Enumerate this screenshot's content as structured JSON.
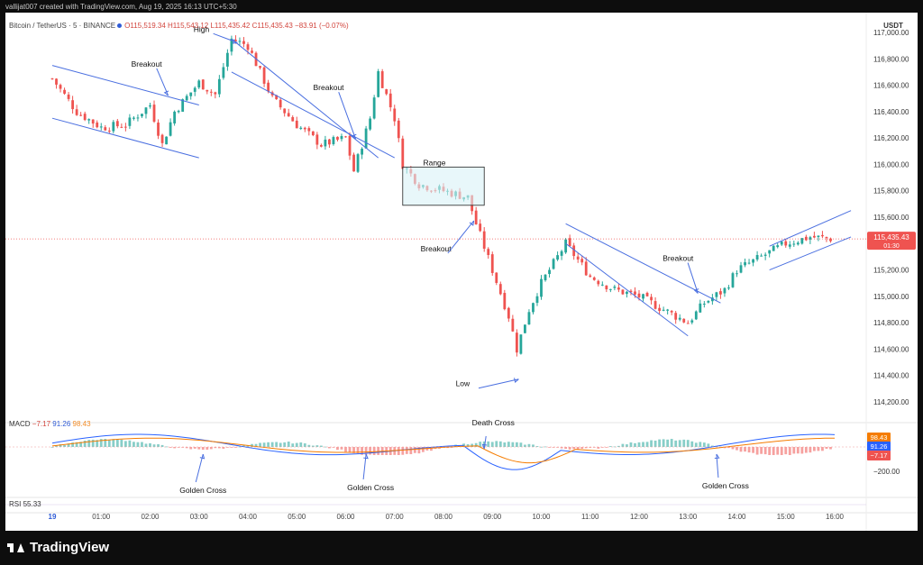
{
  "header": {
    "creator_line": "vallijat007 created with TradingView.com, Aug 19, 2025 16:13 UTC+5:30",
    "symbol": "Bitcoin / TetherUS · 5 · BINANCE",
    "ohlc": "O115,519.34  H115,543.12  L115,435.42  C115,435.43  −83.91 (−0.07%)"
  },
  "brand": {
    "name": "TradingView"
  },
  "colors": {
    "up": "#26a69a",
    "down": "#ef5350",
    "trend": "#4a6fe0",
    "range_fill": "#d8f1f7",
    "macd": "#2962ff",
    "signal": "#f57c00"
  },
  "chart_data": [
    {
      "type": "candlestick",
      "instrument": "Bitcoin / TetherUS",
      "interval": "5",
      "exchange": "BINANCE",
      "y_unit": "USDT",
      "ylim": [
        114200,
        117000
      ],
      "yticks": [
        "117,000.00",
        "116,800.00",
        "116,600.00",
        "116,400.00",
        "116,200.00",
        "116,000.00",
        "115,800.00",
        "115,600.00",
        "115,400.00",
        "115,200.00",
        "115,000.00",
        "114,800.00",
        "114,600.00",
        "114,400.00",
        "114,200.00"
      ],
      "xticks": [
        "19",
        "01:00",
        "02:00",
        "03:00",
        "04:00",
        "05:00",
        "06:00",
        "07:00",
        "08:00",
        "09:00",
        "10:00",
        "11:00",
        "12:00",
        "13:00",
        "14:00",
        "15:00",
        "16:00"
      ],
      "last_price": "115,435.43",
      "countdown": "01:30",
      "approx_close_path": [
        [
          "00:00",
          116650
        ],
        [
          "00:30",
          116400
        ],
        [
          "01:00",
          116280
        ],
        [
          "01:30",
          116300
        ],
        [
          "02:00",
          116450
        ],
        [
          "02:15",
          116150
        ],
        [
          "02:30",
          116400
        ],
        [
          "03:00",
          116620
        ],
        [
          "03:20",
          116530
        ],
        [
          "03:40",
          116950
        ],
        [
          "04:00",
          116900
        ],
        [
          "04:30",
          116500
        ],
        [
          "05:00",
          116300
        ],
        [
          "05:30",
          116150
        ],
        [
          "06:00",
          116200
        ],
        [
          "06:10",
          115950
        ],
        [
          "06:30",
          116350
        ],
        [
          "06:40",
          116700
        ],
        [
          "07:00",
          116350
        ],
        [
          "07:10",
          116000
        ],
        [
          "07:30",
          115850
        ],
        [
          "08:00",
          115800
        ],
        [
          "08:30",
          115750
        ],
        [
          "08:40",
          115550
        ],
        [
          "09:00",
          115200
        ],
        [
          "09:20",
          114850
        ],
        [
          "09:30",
          114600
        ],
        [
          "09:45",
          114900
        ],
        [
          "10:00",
          115100
        ],
        [
          "10:30",
          115400
        ],
        [
          "11:00",
          115150
        ],
        [
          "11:30",
          115050
        ],
        [
          "12:00",
          115000
        ],
        [
          "12:30",
          114900
        ],
        [
          "13:00",
          114800
        ],
        [
          "13:20",
          114950
        ],
        [
          "13:45",
          115050
        ],
        [
          "14:00",
          115200
        ],
        [
          "14:30",
          115300
        ],
        [
          "15:00",
          115400
        ],
        [
          "15:30",
          115450
        ],
        [
          "16:00",
          115435
        ]
      ],
      "annotations": [
        {
          "text": "High",
          "x": "03:45",
          "y": 116950
        },
        {
          "text": "Breakout",
          "x": "02:20",
          "y": 116550
        },
        {
          "text": "Breakout",
          "x": "06:10",
          "y": 116220
        },
        {
          "text": "Range",
          "x": "08:00",
          "y": 115960
        },
        {
          "text": "Breakout",
          "x": "08:35",
          "y": 115600
        },
        {
          "text": "Low",
          "x": "09:30",
          "y": 114400
        },
        {
          "text": "Breakout",
          "x": "13:10",
          "y": 115050
        }
      ]
    },
    {
      "type": "line",
      "name": "MACD",
      "values_label": [
        "−7.17",
        "91.26",
        "98.43"
      ],
      "series": [
        {
          "name": "MACD"
        },
        {
          "name": "Signal"
        }
      ],
      "ytick": "−200.00",
      "annotations": [
        {
          "text": "Golden Cross",
          "x": "03:05"
        },
        {
          "text": "Golden Cross",
          "x": "06:25"
        },
        {
          "text": "Death Cross",
          "x": "08:50"
        },
        {
          "text": "Golden Cross",
          "x": "13:35"
        }
      ]
    },
    {
      "type": "line",
      "name": "RSI",
      "value": "55.33"
    }
  ],
  "macd_label": "MACD",
  "macd_v1": "−7.17",
  "macd_v2": "91.26",
  "macd_v3": "98.43",
  "rsi_label": "RSI",
  "rsi_value": "55.33",
  "axis_unit": "USDT"
}
